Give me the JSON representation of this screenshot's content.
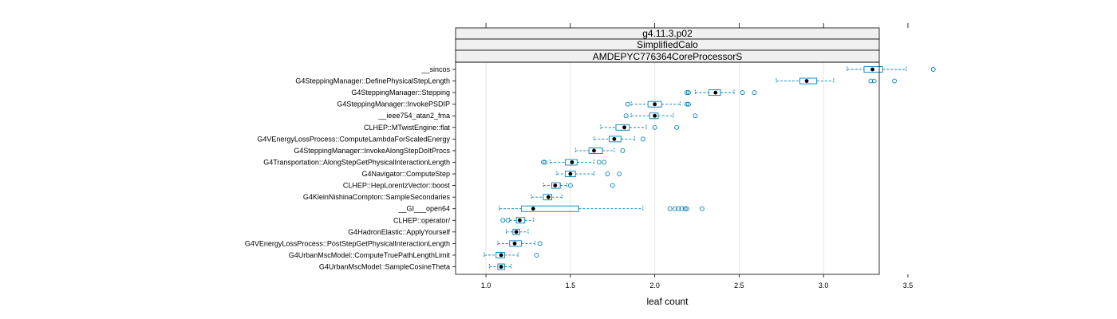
{
  "chart_data": {
    "type": "boxplot",
    "strips": [
      "g4.11.3.p02",
      "SimplifiedCalo",
      "AMDEPYC776364CoreProcessorS"
    ],
    "xlabel": "leaf count",
    "xlim": [
      0.82,
      3.33
    ],
    "xticks": [
      1.0,
      1.5,
      2.0,
      2.5,
      3.0,
      3.5
    ],
    "xtick_labels": [
      "1.0",
      "1.5",
      "2.0",
      "2.5",
      "3.0",
      "3.5"
    ],
    "grid": true,
    "colors": {
      "box": "#0080b8",
      "whisker": "#0080b8",
      "median": "#000000",
      "strip_bg": "#f0f0f0",
      "grid": "#e6e6e6"
    },
    "categories": [
      {
        "name": "__sincos",
        "wlo": 3.14,
        "q1": 3.24,
        "median": 3.29,
        "q3": 3.35,
        "whi": 3.49,
        "outliers": [
          3.65
        ]
      },
      {
        "name": "G4SteppingManager::DefinePhysicalStepLength",
        "wlo": 2.72,
        "q1": 2.86,
        "median": 2.9,
        "q3": 2.96,
        "whi": 3.06,
        "outliers": [
          3.28,
          3.3,
          3.42
        ]
      },
      {
        "name": "G4SteppingManager::Stepping",
        "wlo": 2.24,
        "q1": 2.32,
        "median": 2.36,
        "q3": 2.39,
        "whi": 2.47,
        "outliers": [
          2.19,
          2.2,
          2.52,
          2.59
        ]
      },
      {
        "name": "G4SteppingManager::InvokePSDIP",
        "wlo": 1.86,
        "q1": 1.96,
        "median": 2.0,
        "q3": 2.04,
        "whi": 2.15,
        "outliers": [
          1.84,
          2.19,
          2.2
        ]
      },
      {
        "name": "__ieee754_atan2_fma",
        "wlo": 1.86,
        "q1": 1.97,
        "median": 2.0,
        "q3": 2.02,
        "whi": 2.11,
        "outliers": [
          1.83,
          2.24
        ]
      },
      {
        "name": "CLHEP::MTwistEngine::flat",
        "wlo": 1.68,
        "q1": 1.77,
        "median": 1.82,
        "q3": 1.85,
        "whi": 1.95,
        "outliers": [
          2.0,
          2.13
        ]
      },
      {
        "name": "G4VEnergyLossProcess::ComputeLambdaForScaledEnergy",
        "wlo": 1.64,
        "q1": 1.73,
        "median": 1.76,
        "q3": 1.8,
        "whi": 1.88,
        "outliers": [
          1.93
        ]
      },
      {
        "name": "G4SteppingManager::InvokeAlongStepDoItProcs",
        "wlo": 1.53,
        "q1": 1.61,
        "median": 1.64,
        "q3": 1.69,
        "whi": 1.76,
        "outliers": [
          1.81
        ]
      },
      {
        "name": "G4Transportation::AlongStepGetPhysicalInteractionLength",
        "wlo": 1.38,
        "q1": 1.47,
        "median": 1.51,
        "q3": 1.54,
        "whi": 1.64,
        "outliers": [
          1.34,
          1.35,
          1.67,
          1.7
        ]
      },
      {
        "name": "G4Navigator::ComputeStep",
        "wlo": 1.42,
        "q1": 1.47,
        "median": 1.5,
        "q3": 1.53,
        "whi": 1.64,
        "outliers": [
          1.72,
          1.79
        ]
      },
      {
        "name": "CLHEP::HepLorentzVector::boost",
        "wlo": 1.34,
        "q1": 1.39,
        "median": 1.41,
        "q3": 1.44,
        "whi": 1.48,
        "outliers": [
          1.5,
          1.75
        ]
      },
      {
        "name": "G4KleinNishinaCompton::SampleSecondaries",
        "wlo": 1.27,
        "q1": 1.34,
        "median": 1.37,
        "q3": 1.39,
        "whi": 1.45,
        "outliers": []
      },
      {
        "name": "__GI___open64",
        "wlo": 1.08,
        "q1": 1.21,
        "median": 1.28,
        "q3": 1.55,
        "whi": 1.93,
        "outliers": [
          2.09,
          2.12,
          2.14,
          2.16,
          2.18,
          2.19,
          2.28
        ]
      },
      {
        "name": "CLHEP::operator/",
        "wlo": 1.14,
        "q1": 1.18,
        "median": 1.2,
        "q3": 1.23,
        "whi": 1.28,
        "outliers": [
          1.1,
          1.13
        ]
      },
      {
        "name": "G4HadronElastic::ApplyYourself",
        "wlo": 1.12,
        "q1": 1.16,
        "median": 1.18,
        "q3": 1.2,
        "whi": 1.25,
        "outliers": []
      },
      {
        "name": "G4VEnergyLossProcess::PostStepGetPhysicalInteractionLength",
        "wlo": 1.07,
        "q1": 1.14,
        "median": 1.17,
        "q3": 1.21,
        "whi": 1.29,
        "outliers": [
          1.32
        ]
      },
      {
        "name": "G4UrbanMscModel::ComputeTruePathLengthLimit",
        "wlo": 0.99,
        "q1": 1.06,
        "median": 1.09,
        "q3": 1.11,
        "whi": 1.19,
        "outliers": [
          1.3
        ]
      },
      {
        "name": "G4UrbanMscModel::SampleCosineTheta",
        "wlo": 1.02,
        "q1": 1.07,
        "median": 1.09,
        "q3": 1.11,
        "whi": 1.15,
        "outliers": []
      }
    ]
  }
}
